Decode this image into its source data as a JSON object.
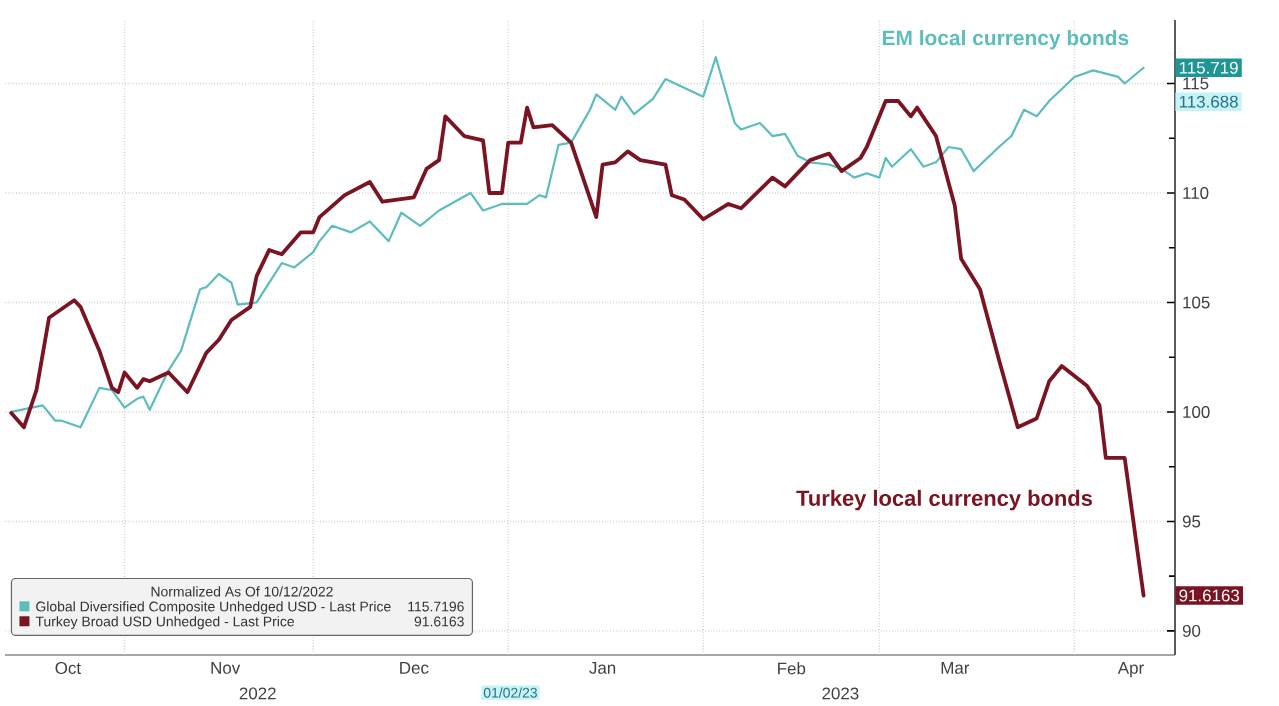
{
  "chart_data": {
    "type": "line",
    "legend_title": "Normalized As Of 10/12/2022",
    "legend": "bottom left",
    "grid": true,
    "marker": "none",
    "line_style": "solid",
    "xlim": [
      "2022-10-13",
      "2023-04-17"
    ],
    "ylim": [
      88.9,
      117.9
    ],
    "xticks": [
      {
        "value": "2022-10-23",
        "label": "Oct"
      },
      {
        "value": "2022-11-01",
        "label": null
      },
      {
        "value": "2022-11-17",
        "label": "Nov"
      },
      {
        "value": "2022-12-01",
        "label": null
      },
      {
        "value": "2022-12-17",
        "label": "Dec"
      },
      {
        "value": "2023-01-01",
        "label": null
      },
      {
        "value": "2023-01-16",
        "label": "Jan"
      },
      {
        "value": "2023-02-01",
        "label": null
      },
      {
        "value": "2023-02-15",
        "label": "Feb"
      },
      {
        "value": "2023-03-01",
        "label": null
      },
      {
        "value": "2023-03-13",
        "label": "Mar"
      },
      {
        "value": "2023-04-01",
        "label": null
      },
      {
        "value": "2023-04-10",
        "label": "Apr"
      }
    ],
    "yticks": [
      90,
      {
        "value": 92.5,
        "label": null
      },
      95,
      {
        "value": 97.5,
        "label": null
      },
      100,
      {
        "value": 102.5,
        "label": null
      },
      105,
      {
        "value": 107.5,
        "label": null
      },
      110,
      {
        "value": 112.5,
        "label": null
      },
      115
    ],
    "series": [
      {
        "name": "Global Diversified Composite Unhedged USD - Last Price",
        "color": "#5bbdbd",
        "x": [
          "2022-10-14",
          "2022-10-19",
          "2022-10-21",
          "2022-10-22",
          "2022-10-25",
          "2022-10-28",
          "2022-10-30",
          "2022-11-01",
          "2022-11-03",
          "2022-11-04",
          "2022-11-05",
          "2022-11-08",
          "2022-11-10",
          "2022-11-13",
          "2022-11-14",
          "2022-11-16",
          "2022-11-18",
          "2022-11-19",
          "2022-11-22",
          "2022-11-26",
          "2022-11-28",
          "2022-12-01",
          "2022-12-02",
          "2022-12-04",
          "2022-12-07",
          "2022-12-10",
          "2022-12-13",
          "2022-12-15",
          "2022-12-18",
          "2022-12-21",
          "2022-12-26",
          "2022-12-28",
          "2022-12-31",
          "2023-01-04",
          "2023-01-06",
          "2023-01-07",
          "2023-01-09",
          "2023-01-11",
          "2023-01-14",
          "2023-01-15",
          "2023-01-18",
          "2023-01-19",
          "2023-01-21",
          "2023-01-24",
          "2023-01-26",
          "2023-02-01",
          "2023-02-03",
          "2023-02-06",
          "2023-02-07",
          "2023-02-10",
          "2023-02-12",
          "2023-02-14",
          "2023-02-16",
          "2023-02-18",
          "2023-02-21",
          "2023-02-23",
          "2023-02-25",
          "2023-02-27",
          "2023-03-01",
          "2023-03-02",
          "2023-03-03",
          "2023-03-06",
          "2023-03-08",
          "2023-03-10",
          "2023-03-12",
          "2023-03-14",
          "2023-03-16",
          "2023-03-20",
          "2023-03-22",
          "2023-03-24",
          "2023-03-26",
          "2023-03-28",
          "2023-04-01",
          "2023-04-04",
          "2023-04-08",
          "2023-04-09",
          "2023-04-12"
        ],
        "values": [
          100.0,
          100.3,
          99.6,
          99.6,
          99.3,
          101.1,
          101.0,
          100.2,
          100.6,
          100.7,
          100.1,
          101.9,
          102.8,
          105.6,
          105.7,
          106.3,
          105.9,
          104.9,
          105.0,
          106.8,
          106.6,
          107.3,
          107.8,
          108.5,
          108.2,
          108.7,
          107.8,
          109.1,
          108.5,
          109.2,
          110.0,
          109.2,
          109.5,
          109.5,
          109.9,
          109.8,
          112.2,
          112.3,
          113.8,
          114.5,
          113.8,
          114.4,
          113.6,
          114.3,
          115.2,
          114.4,
          116.2,
          113.2,
          112.9,
          113.2,
          112.6,
          112.7,
          111.7,
          111.4,
          111.3,
          111.1,
          110.7,
          110.9,
          110.7,
          111.6,
          111.2,
          112.0,
          111.2,
          111.4,
          112.1,
          112.0,
          111.0,
          112.1,
          112.6,
          113.8,
          113.5,
          114.2,
          115.3,
          115.6,
          115.3,
          115.0,
          115.719
        ]
      },
      {
        "name": "Turkey Broad USD Unhedged - Last Price",
        "color": "#7a1422",
        "x": [
          "2022-10-14",
          "2022-10-16",
          "2022-10-18",
          "2022-10-20",
          "2022-10-24",
          "2022-10-25",
          "2022-10-28",
          "2022-10-30",
          "2022-10-31",
          "2022-11-01",
          "2022-11-03",
          "2022-11-04",
          "2022-11-05",
          "2022-11-08",
          "2022-11-11",
          "2022-11-14",
          "2022-11-16",
          "2022-11-18",
          "2022-11-21",
          "2022-11-22",
          "2022-11-24",
          "2022-11-26",
          "2022-11-29",
          "2022-12-01",
          "2022-12-02",
          "2022-12-06",
          "2022-12-10",
          "2022-12-12",
          "2022-12-17",
          "2022-12-19",
          "2022-12-21",
          "2022-12-22",
          "2022-12-25",
          "2022-12-28",
          "2022-12-29",
          "2022-12-31",
          "2023-01-01",
          "2023-01-03",
          "2023-01-04",
          "2023-01-05",
          "2023-01-08",
          "2023-01-11",
          "2023-01-15",
          "2023-01-16",
          "2023-01-18",
          "2023-01-20",
          "2023-01-22",
          "2023-01-26",
          "2023-01-27",
          "2023-01-29",
          "2023-02-01",
          "2023-02-05",
          "2023-02-07",
          "2023-02-12",
          "2023-02-14",
          "2023-02-18",
          "2023-02-21",
          "2023-02-23",
          "2023-02-26",
          "2023-02-27",
          "2023-03-02",
          "2023-03-04",
          "2023-03-06",
          "2023-03-07",
          "2023-03-10",
          "2023-03-13",
          "2023-03-14",
          "2023-03-17",
          "2023-03-20",
          "2023-03-23",
          "2023-03-26",
          "2023-03-28",
          "2023-03-30",
          "2023-04-03",
          "2023-04-05",
          "2023-04-06",
          "2023-04-09",
          "2023-04-12"
        ],
        "values": [
          99.95,
          99.3,
          101.0,
          104.3,
          105.1,
          104.8,
          102.8,
          101.1,
          100.9,
          101.8,
          101.1,
          101.5,
          101.4,
          101.8,
          100.9,
          102.7,
          103.3,
          104.2,
          104.8,
          106.2,
          107.4,
          107.2,
          108.2,
          108.2,
          108.9,
          109.9,
          110.5,
          109.6,
          109.8,
          111.1,
          111.5,
          113.5,
          112.6,
          112.4,
          110.0,
          110.0,
          112.3,
          112.3,
          113.9,
          113.0,
          113.1,
          112.3,
          108.9,
          111.3,
          111.4,
          111.9,
          111.5,
          111.3,
          109.9,
          109.7,
          108.8,
          109.5,
          109.3,
          110.7,
          110.3,
          111.5,
          111.8,
          111.0,
          111.6,
          112.1,
          114.2,
          114.2,
          113.5,
          113.9,
          112.6,
          109.4,
          107.0,
          105.6,
          102.4,
          99.3,
          99.7,
          101.4,
          102.1,
          101.2,
          100.3,
          97.9,
          97.9,
          91.6163
        ]
      }
    ],
    "annotations": [
      "EM local currency bonds",
      "Turkey local currency bonds",
      "115.719",
      "113.688",
      "91.6163",
      "115.7196",
      "91.6163",
      "2022",
      "01/02/23",
      "2023"
    ]
  }
}
